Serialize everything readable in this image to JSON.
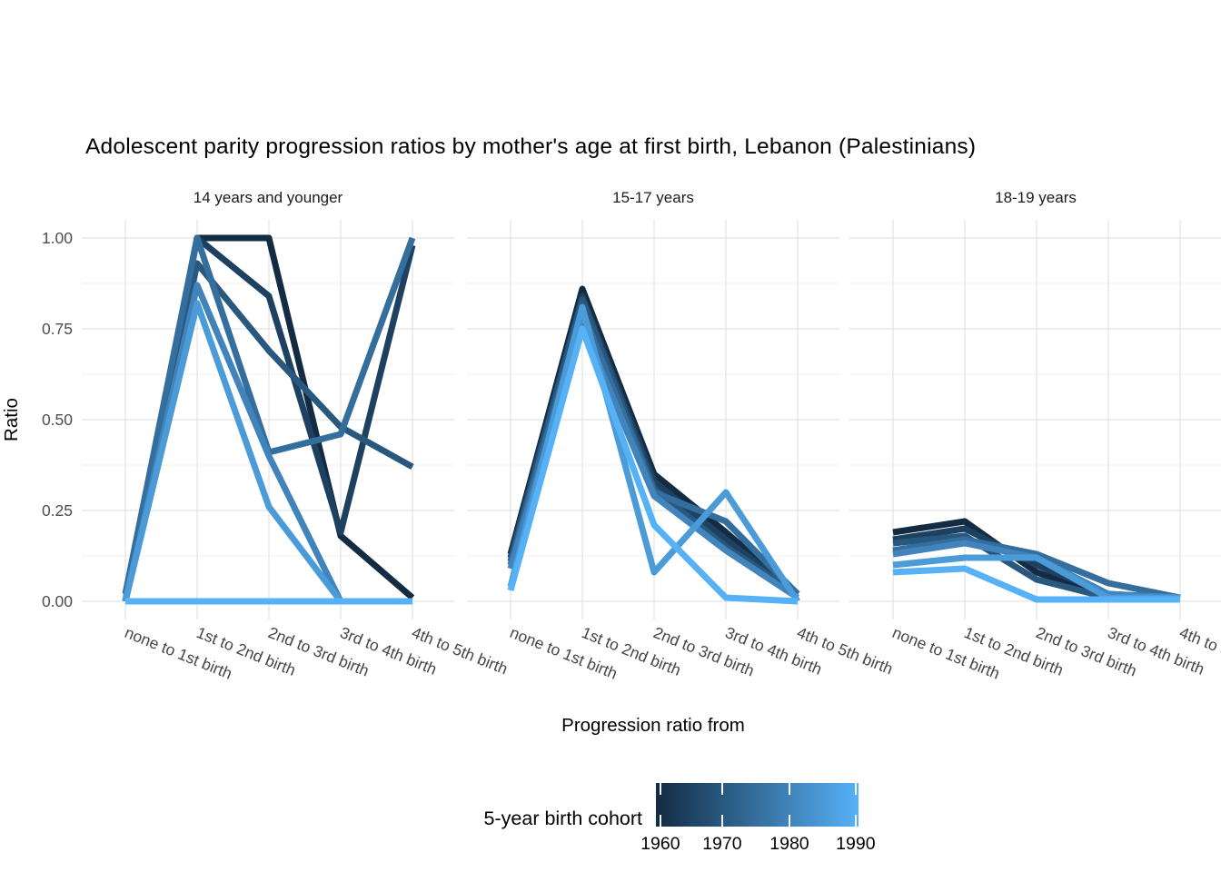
{
  "chart_data": {
    "type": "line",
    "title": "Adolescent parity progression ratios by mother's age at first birth,  Lebanon (Palestinians)",
    "xlabel": "Progression ratio from",
    "ylabel": "Ratio",
    "ylim": [
      0,
      1
    ],
    "y_tick_labels": [
      "1.00",
      "0.75",
      "0.50",
      "0.25",
      "0.00"
    ],
    "y_major_breaks": [
      1.0,
      0.75,
      0.5,
      0.25,
      0.0
    ],
    "y_minor_breaks": [
      0.875,
      0.625,
      0.375,
      0.125
    ],
    "grid": "on",
    "x_categories": [
      "none to 1st birth",
      "1st to 2nd birth",
      "2nd to 3rd birth",
      "3rd to 4th birth",
      "4th to 5th birth"
    ],
    "facets": [
      {
        "label": "14 years and younger",
        "series": [
          {
            "cohort": "1960",
            "color": "#132B43",
            "values": [
              0.0,
              1.0,
              1.0,
              0.18,
              0.01
            ]
          },
          {
            "cohort": "1965",
            "color": "#1E4161",
            "values": [
              0.0,
              1.0,
              0.84,
              0.19,
              0.98
            ]
          },
          {
            "cohort": "1970",
            "color": "#29587F",
            "values": [
              0.0,
              0.93,
              0.69,
              0.48,
              0.37
            ]
          },
          {
            "cohort": "1975",
            "color": "#346E9D",
            "values": [
              0.02,
              1.0,
              0.41,
              0.46,
              1.0
            ]
          },
          {
            "cohort": "1980",
            "color": "#4084BB",
            "values": [
              0.0,
              0.87,
              0.4,
              0.0,
              0.0
            ]
          },
          {
            "cohort": "1985",
            "color": "#4B9BD9",
            "values": [
              0.0,
              0.82,
              0.26,
              0.0,
              0.0
            ]
          },
          {
            "cohort": "1990",
            "color": "#56B1F7",
            "values": [
              0.0,
              0.0,
              0.0,
              0.0,
              0.0
            ]
          }
        ]
      },
      {
        "label": "15-17 years",
        "series": [
          {
            "cohort": "1960",
            "color": "#132B43",
            "values": [
              0.13,
              0.86,
              0.35,
              0.19,
              0.02
            ]
          },
          {
            "cohort": "1965",
            "color": "#1E4161",
            "values": [
              0.12,
              0.84,
              0.33,
              0.17,
              0.02
            ]
          },
          {
            "cohort": "1970",
            "color": "#29587F",
            "values": [
              0.11,
              0.83,
              0.31,
              0.15,
              0.02
            ]
          },
          {
            "cohort": "1975",
            "color": "#346E9D",
            "values": [
              0.1,
              0.8,
              0.3,
              0.22,
              0.02
            ]
          },
          {
            "cohort": "1980",
            "color": "#4084BB",
            "values": [
              0.09,
              0.76,
              0.29,
              0.14,
              0.01
            ]
          },
          {
            "cohort": "1985",
            "color": "#4B9BD9",
            "values": [
              0.04,
              0.81,
              0.08,
              0.3,
              0.0
            ]
          },
          {
            "cohort": "1990",
            "color": "#56B1F7",
            "values": [
              0.03,
              0.75,
              0.21,
              0.01,
              0.0
            ]
          }
        ]
      },
      {
        "label": "18-19 years",
        "series": [
          {
            "cohort": "1960",
            "color": "#132B43",
            "values": [
              0.19,
              0.22,
              0.08,
              0.01,
              0.01
            ]
          },
          {
            "cohort": "1965",
            "color": "#1E4161",
            "values": [
              0.17,
              0.2,
              0.1,
              0.02,
              0.01
            ]
          },
          {
            "cohort": "1970",
            "color": "#29587F",
            "values": [
              0.16,
              0.18,
              0.06,
              0.01,
              0.01
            ]
          },
          {
            "cohort": "1975",
            "color": "#346E9D",
            "values": [
              0.14,
              0.17,
              0.13,
              0.05,
              0.01
            ]
          },
          {
            "cohort": "1980",
            "color": "#4084BB",
            "values": [
              0.13,
              0.16,
              0.12,
              0.02,
              0.01
            ]
          },
          {
            "cohort": "1985",
            "color": "#4B9BD9",
            "values": [
              0.1,
              0.12,
              0.12,
              0.01,
              0.01
            ]
          },
          {
            "cohort": "1990",
            "color": "#56B1F7",
            "values": [
              0.08,
              0.09,
              0.005,
              0.005,
              0.005
            ]
          }
        ]
      }
    ],
    "legend": {
      "title": "5-year birth cohort",
      "position": "bottom",
      "tick_labels": [
        "1960",
        "1970",
        "1980",
        "1990"
      ],
      "gradient_start": "#132B43",
      "gradient_mid1": "#29587F",
      "gradient_mid2": "#4084BB",
      "gradient_end": "#56B1F7"
    }
  }
}
